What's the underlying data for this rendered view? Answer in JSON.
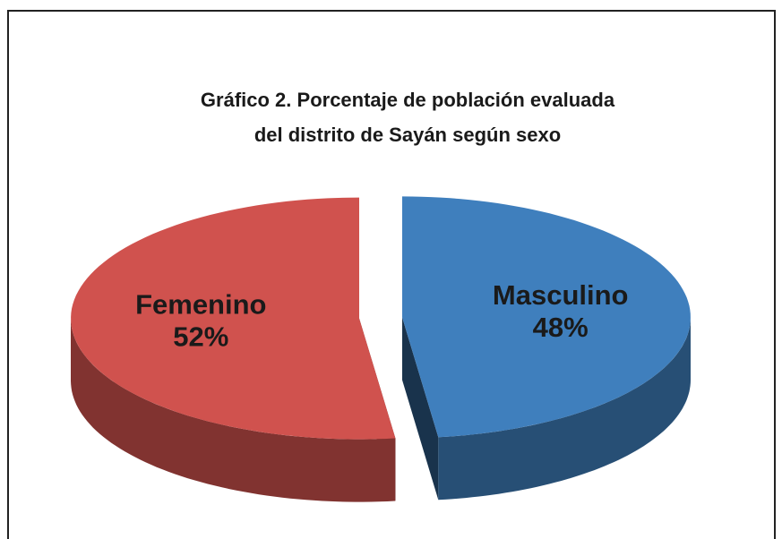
{
  "chart_data": {
    "type": "pie",
    "title": [
      "Gráfico 2. Porcentaje de población evaluada",
      "del distrito de Sayán según sexo"
    ],
    "categories": [
      "Masculino",
      "Femenino"
    ],
    "values": [
      48,
      52
    ],
    "value_labels": [
      "48%",
      "52%"
    ],
    "colors": [
      "#3f7fbd",
      "#d0524e"
    ]
  }
}
